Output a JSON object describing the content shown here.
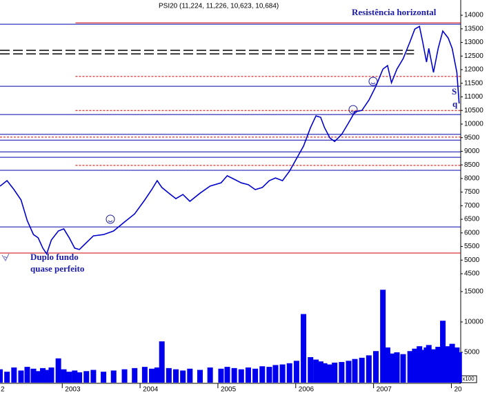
{
  "chart_data": [
    {
      "type": "line",
      "title": "PSI20 (11,224, 11,226, 10,623, 10,684)",
      "xlim": [
        2002.2,
        2008.12
      ],
      "ylim": [
        4170,
        14560
      ],
      "yticks": [
        4500,
        5000,
        5500,
        6000,
        6500,
        7000,
        7500,
        8000,
        8500,
        9000,
        9500,
        10000,
        10500,
        11000,
        11500,
        12000,
        12500,
        13000,
        13500,
        14000
      ],
      "x": [
        2002.2,
        2002.29,
        2002.38,
        2002.47,
        2002.55,
        2002.63,
        2002.69,
        2002.75,
        2002.8,
        2002.86,
        2002.95,
        2003.02,
        2003.09,
        2003.16,
        2003.22,
        2003.31,
        2003.4,
        2003.53,
        2003.66,
        2003.8,
        2003.93,
        2004.06,
        2004.15,
        2004.22,
        2004.28,
        2004.37,
        2004.46,
        2004.55,
        2004.64,
        2004.77,
        2004.9,
        2005.04,
        2005.12,
        2005.21,
        2005.3,
        2005.39,
        2005.48,
        2005.57,
        2005.66,
        2005.74,
        2005.83,
        2005.92,
        2006.01,
        2006.1,
        2006.19,
        2006.26,
        2006.32,
        2006.37,
        2006.44,
        2006.5,
        2006.59,
        2006.68,
        2006.76,
        2006.85,
        2006.94,
        2007.03,
        2007.12,
        2007.18,
        2007.23,
        2007.3,
        2007.38,
        2007.47,
        2007.53,
        2007.59,
        2007.63,
        2007.68,
        2007.71,
        2007.77,
        2007.83,
        2007.89,
        2007.96,
        2008.01,
        2008.07,
        2008.1
      ],
      "series": [
        {
          "color": "#0000cc",
          "values": [
            7717,
            7920,
            7590,
            7210,
            6450,
            5940,
            5820,
            5440,
            5230,
            5740,
            6070,
            6150,
            5820,
            5440,
            5390,
            5640,
            5890,
            5940,
            6070,
            6400,
            6700,
            7210,
            7590,
            7920,
            7670,
            7460,
            7260,
            7410,
            7160,
            7460,
            7720,
            7840,
            8100,
            7970,
            7840,
            7770,
            7590,
            7670,
            7920,
            8020,
            7920,
            8270,
            8730,
            9190,
            9870,
            10300,
            10250,
            9870,
            9490,
            9360,
            9620,
            10050,
            10450,
            10500,
            10880,
            11390,
            12020,
            12150,
            11520,
            12020,
            12400,
            13040,
            13490,
            13590,
            13040,
            12280,
            12780,
            11900,
            12780,
            13420,
            13160,
            12780,
            11900,
            10760
          ]
        }
      ],
      "levels": [
        {
          "value": 13720,
          "color": "#cc0000",
          "from": 2003.17
        },
        {
          "value": 13670,
          "color": "#0000aa"
        },
        {
          "value": 12710,
          "color": "#000000",
          "dash": true,
          "to": 2007.52
        },
        {
          "value": 12580,
          "color": "#000000",
          "dash": true,
          "to": 2007.52
        },
        {
          "value": 11750,
          "color": "#cc0000",
          "dash": true,
          "from": 2003.17
        },
        {
          "value": 11390,
          "color": "#0000aa"
        },
        {
          "value": 10500,
          "color": "#cc0000",
          "dash": true,
          "from": 2003.17
        },
        {
          "value": 10350,
          "color": "#0000aa"
        },
        {
          "value": 9620,
          "color": "#0000aa"
        },
        {
          "value": 9520,
          "color": "#cc0000",
          "dash": true
        },
        {
          "value": 9410,
          "color": "#0000aa"
        },
        {
          "value": 8980,
          "color": "#0000aa"
        },
        {
          "value": 8780,
          "color": "#0000aa"
        },
        {
          "value": 8480,
          "color": "#cc0000",
          "dash": true,
          "from": 2003.17
        },
        {
          "value": 8300,
          "color": "#0000aa"
        },
        {
          "value": 6220,
          "color": "#0000aa"
        },
        {
          "value": 5260,
          "color": "#cc0000"
        }
      ],
      "annotations": [
        "Resistência horizontal",
        "Duplo fundo",
        "quase perfeito",
        "S",
        "q"
      ]
    },
    {
      "type": "bar",
      "unit": "x100",
      "color": "#0000ee",
      "xlim": [
        2002.2,
        2008.12
      ],
      "ylim": [
        0,
        15900
      ],
      "yticks": [
        5000,
        10000,
        15000
      ],
      "xticks": [
        {
          "value": 2002,
          "label": "2"
        },
        2003,
        2004,
        2005,
        2006,
        2007,
        {
          "value": 2008,
          "label": "20"
        }
      ],
      "x": [
        2002.2,
        2002.29,
        2002.38,
        2002.47,
        2002.55,
        2002.63,
        2002.69,
        2002.75,
        2002.8,
        2002.86,
        2002.95,
        2003.02,
        2003.09,
        2003.16,
        2003.22,
        2003.31,
        2003.4,
        2003.53,
        2003.66,
        2003.8,
        2003.93,
        2004.06,
        2004.15,
        2004.22,
        2004.28,
        2004.37,
        2004.46,
        2004.55,
        2004.64,
        2004.77,
        2004.9,
        2005.04,
        2005.12,
        2005.21,
        2005.3,
        2005.39,
        2005.48,
        2005.57,
        2005.66,
        2005.74,
        2005.83,
        2005.92,
        2006.01,
        2006.1,
        2006.19,
        2006.26,
        2006.32,
        2006.37,
        2006.44,
        2006.5,
        2006.59,
        2006.68,
        2006.76,
        2006.85,
        2006.94,
        2007.03,
        2007.12,
        2007.18,
        2007.23,
        2007.3,
        2007.38,
        2007.47,
        2007.53,
        2007.59,
        2007.63,
        2007.68,
        2007.71,
        2007.77,
        2007.83,
        2007.89,
        2007.96,
        2008.01,
        2008.07,
        2008.1
      ],
      "values": [
        2200,
        1800,
        2500,
        2000,
        2600,
        2300,
        1900,
        2400,
        2100,
        2500,
        4000,
        2200,
        1800,
        2000,
        1700,
        1900,
        2100,
        1800,
        2000,
        2200,
        2400,
        2600,
        2300,
        2500,
        6800,
        2400,
        2200,
        2000,
        2300,
        2100,
        2500,
        2300,
        2600,
        2400,
        2200,
        2500,
        2300,
        2700,
        2600,
        2900,
        3000,
        3200,
        3600,
        11300,
        4200,
        3800,
        3500,
        3200,
        3000,
        3300,
        3400,
        3600,
        3900,
        4100,
        4500,
        5200,
        15300,
        5800,
        4800,
        5000,
        4700,
        5200,
        5600,
        6000,
        5400,
        5800,
        6200,
        5500,
        5900,
        10200,
        6000,
        6400,
        5800,
        5000
      ]
    }
  ]
}
